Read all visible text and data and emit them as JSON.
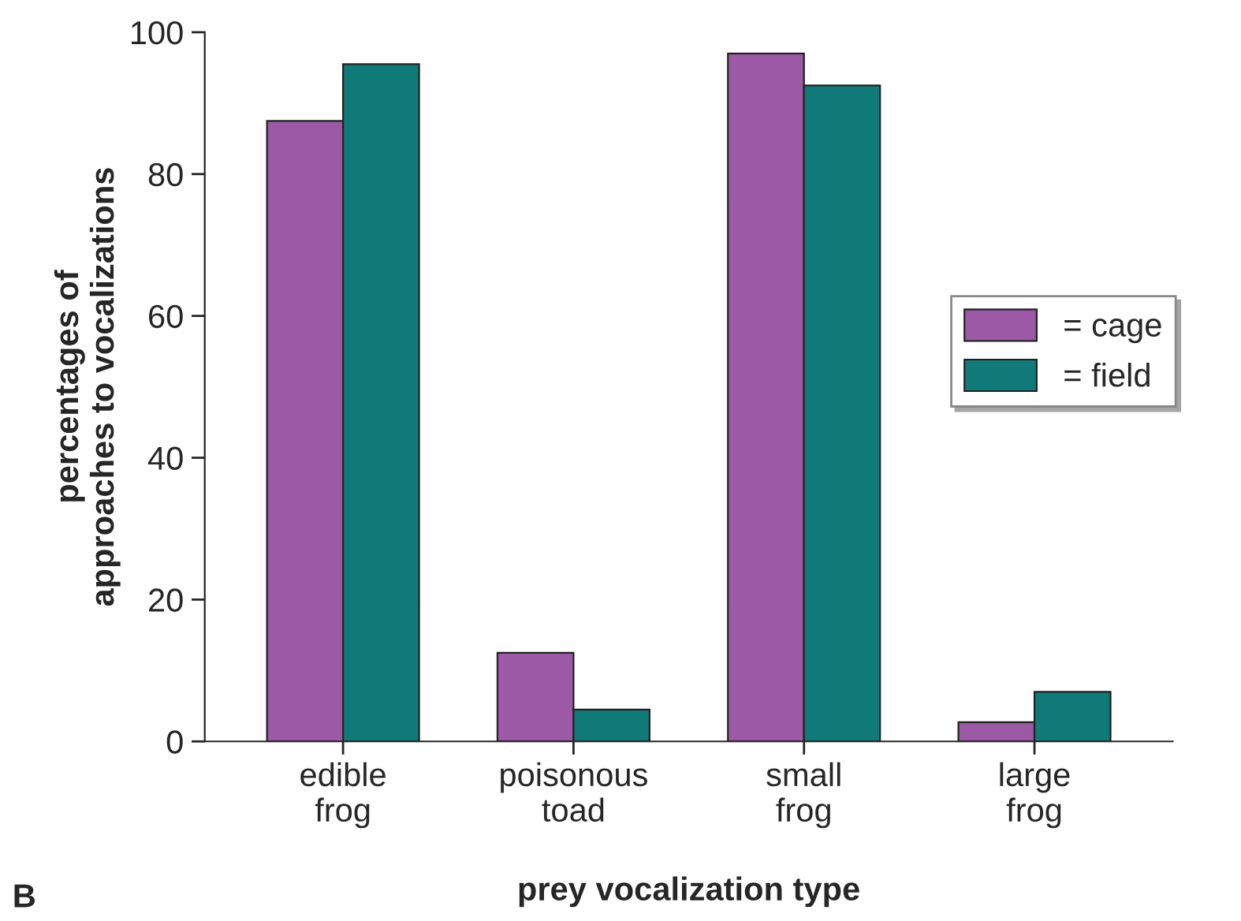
{
  "chart_data": {
    "type": "bar",
    "xlabel": "prey vocalization type",
    "ylabel": "percentages of\napproaches to vocalizations",
    "categories": [
      "edible\nfrog",
      "poisonous\ntoad",
      "small\nfrog",
      "large\nfrog"
    ],
    "series": [
      {
        "name": "= cage",
        "color": "#9b59a6",
        "values": [
          87.5,
          12.5,
          97,
          2.7
        ]
      },
      {
        "name": "= field",
        "color": "#0f7a78",
        "values": [
          95.5,
          4.5,
          92.5,
          7
        ]
      }
    ],
    "ylim": [
      0,
      100
    ],
    "yticks": [
      0,
      20,
      40,
      60,
      80,
      100
    ],
    "grid": false,
    "legend": "right",
    "annotations": [
      "B"
    ]
  }
}
